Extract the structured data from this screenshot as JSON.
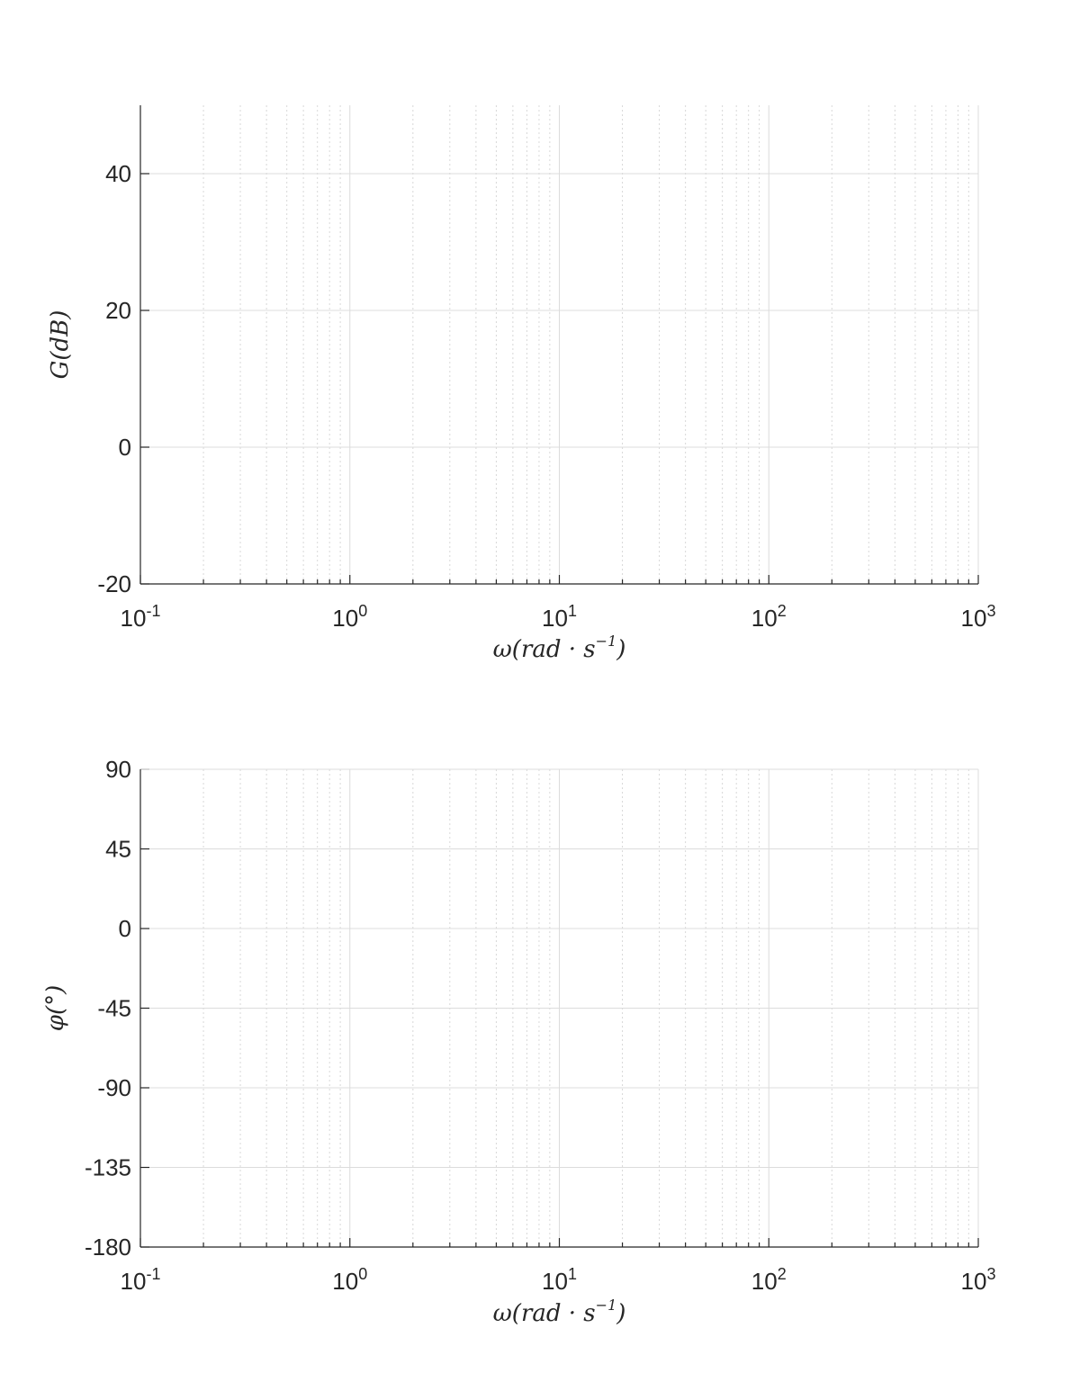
{
  "chart_data": [
    {
      "type": "line",
      "series": [],
      "title": "",
      "xscale": "log",
      "xlim": [
        0.1,
        1000
      ],
      "ylim": [
        -20,
        50
      ],
      "x_ticks": [
        {
          "base": "10",
          "exp": "-1",
          "value": 0.1
        },
        {
          "base": "10",
          "exp": "0",
          "value": 1
        },
        {
          "base": "10",
          "exp": "1",
          "value": 10
        },
        {
          "base": "10",
          "exp": "2",
          "value": 100
        },
        {
          "base": "10",
          "exp": "3",
          "value": 1000
        }
      ],
      "y_ticks": [
        -20,
        0,
        20,
        40
      ],
      "xlabel": {
        "main": "ω(rad · s",
        "sup": "−1",
        "tail": ")"
      },
      "ylabel": "G(dB)",
      "grid": true
    },
    {
      "type": "line",
      "series": [],
      "title": "",
      "xscale": "log",
      "xlim": [
        0.1,
        1000
      ],
      "ylim": [
        -180,
        90
      ],
      "x_ticks": [
        {
          "base": "10",
          "exp": "-1",
          "value": 0.1
        },
        {
          "base": "10",
          "exp": "0",
          "value": 1
        },
        {
          "base": "10",
          "exp": "1",
          "value": 10
        },
        {
          "base": "10",
          "exp": "2",
          "value": 100
        },
        {
          "base": "10",
          "exp": "3",
          "value": 1000
        }
      ],
      "y_ticks": [
        -180,
        -135,
        -90,
        -45,
        0,
        45,
        90
      ],
      "xlabel": {
        "main": "ω(rad · s",
        "sup": "−1",
        "tail": ")"
      },
      "ylabel": "φ(°)",
      "grid": true
    }
  ]
}
